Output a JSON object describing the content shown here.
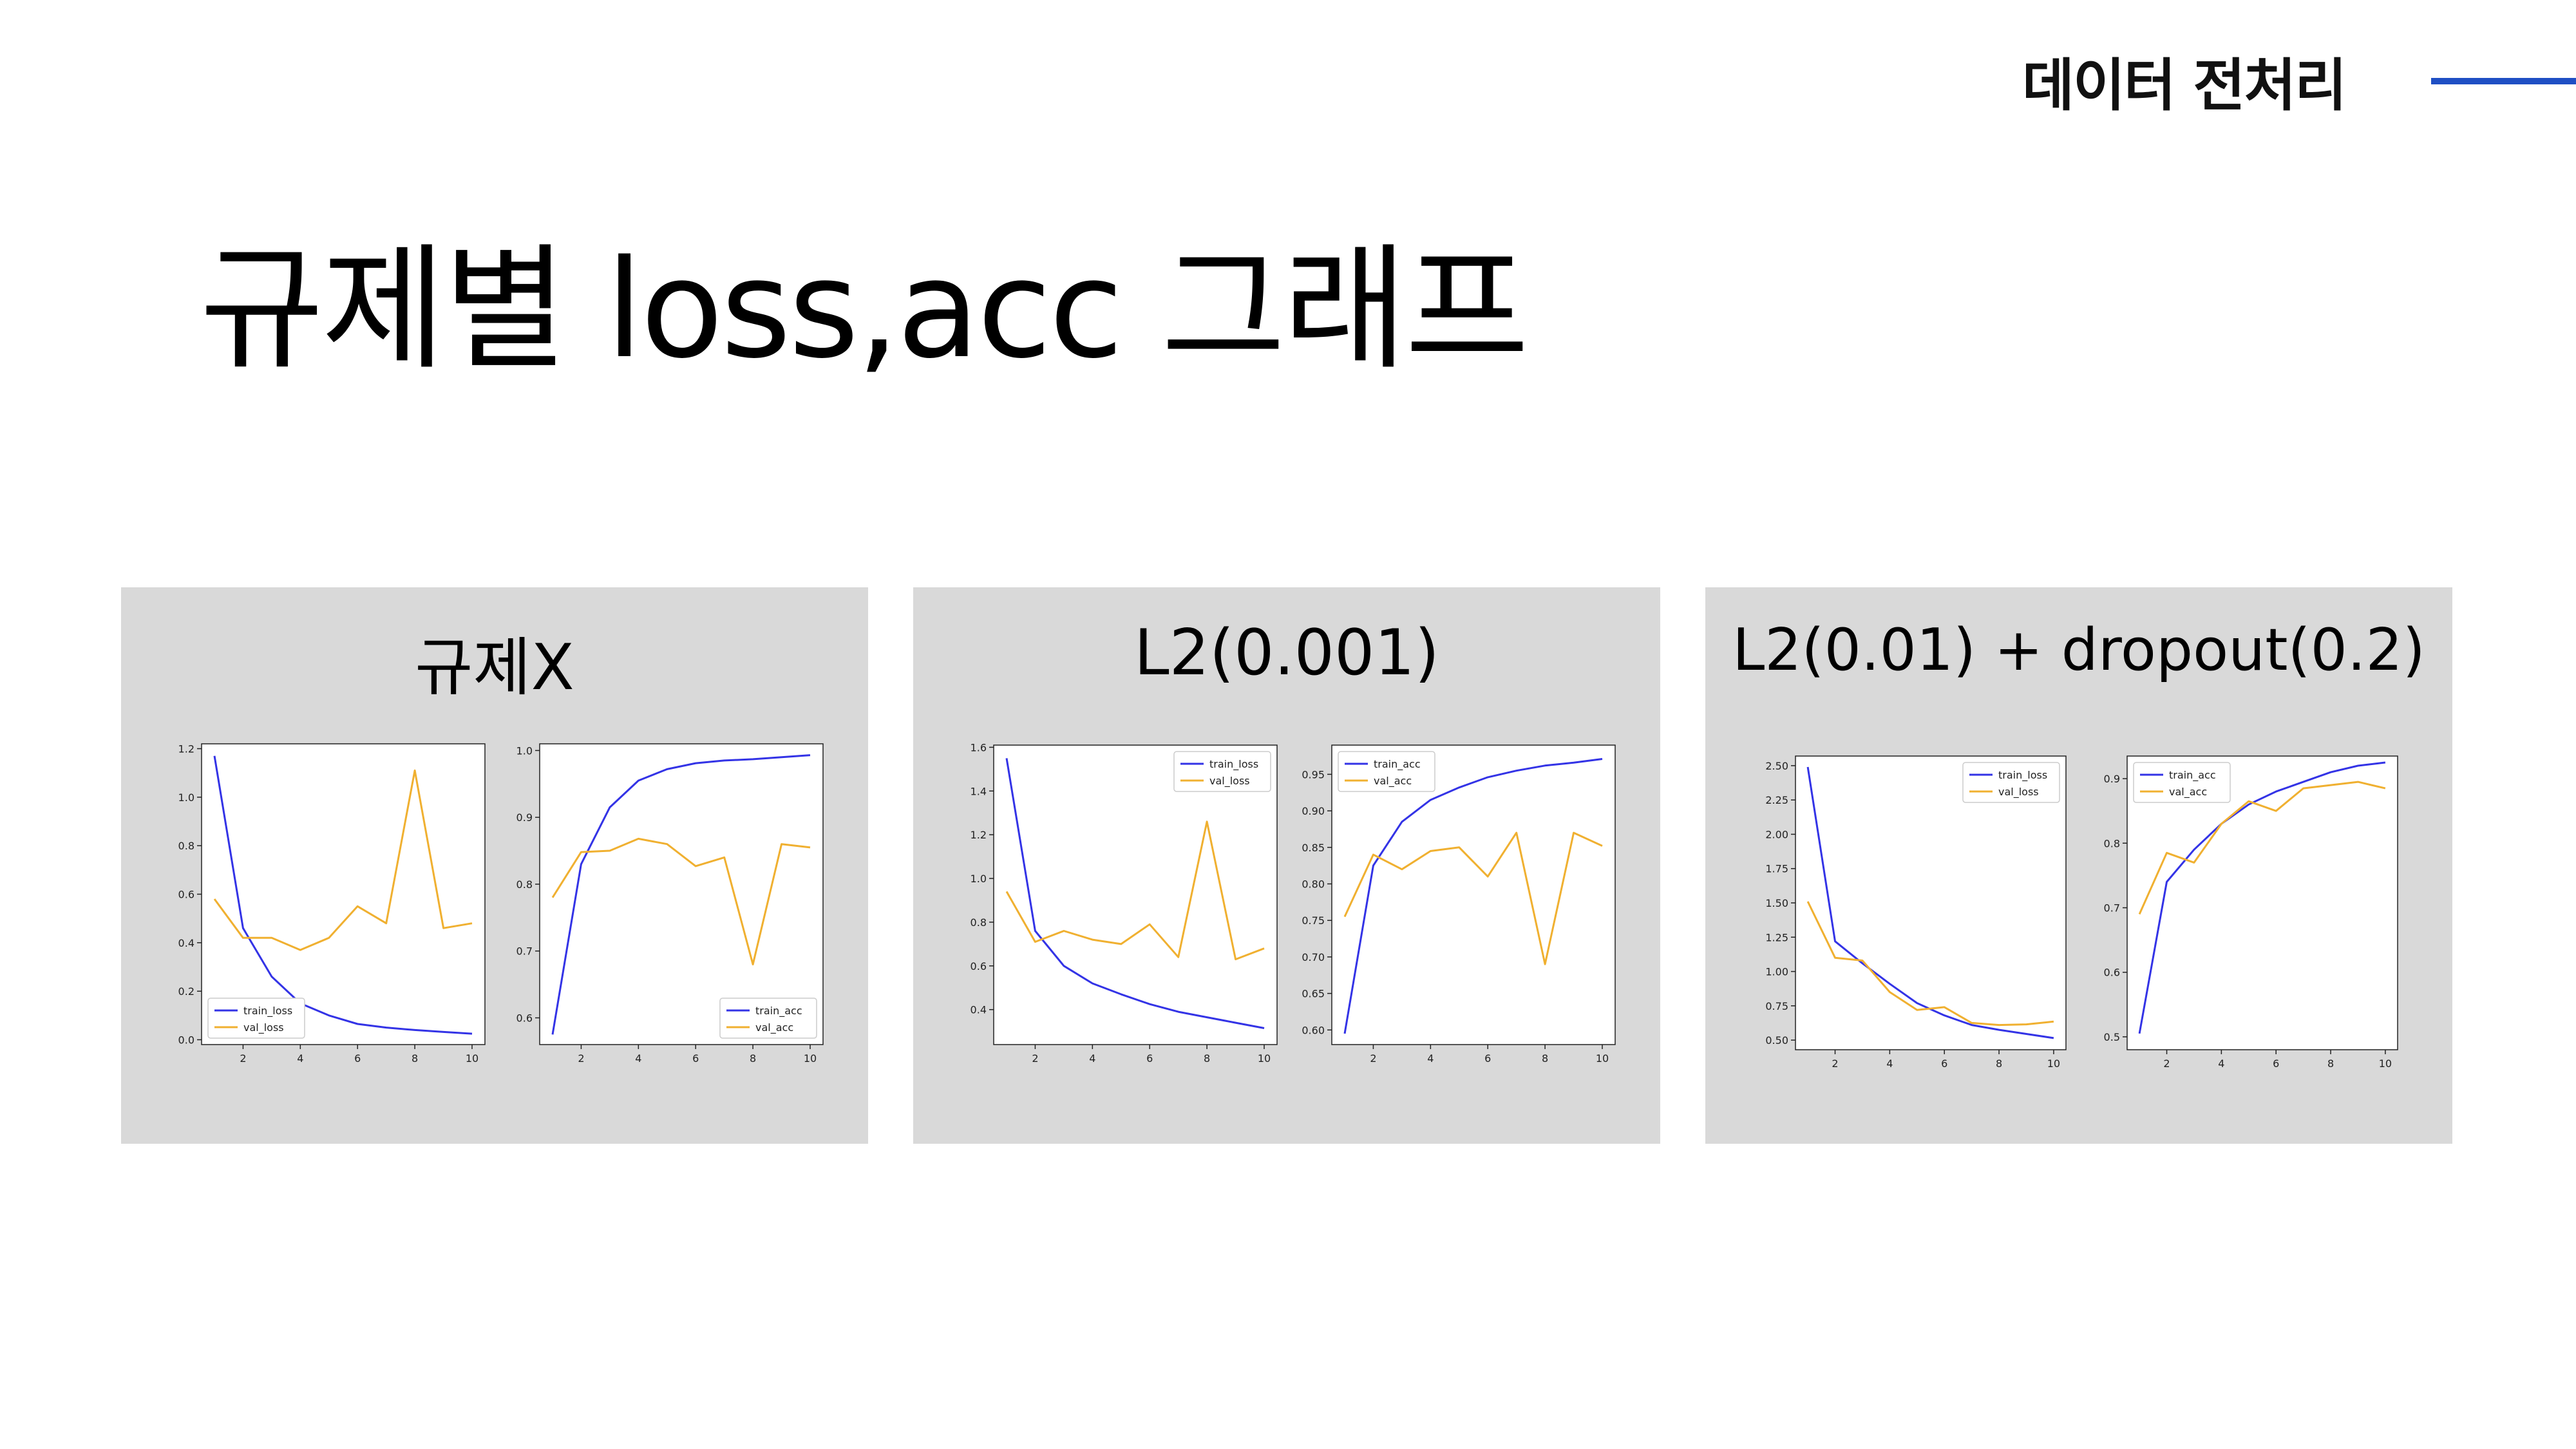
{
  "header": {
    "section_tag": "데이터 전처리",
    "accent_color": "#1f4fc4"
  },
  "title": "규제별 loss,acc 그래프",
  "panels": [
    {
      "title": "규제X"
    },
    {
      "title": "L2(0.001)"
    },
    {
      "title": "L2(0.01) + dropout(0.2)"
    }
  ],
  "chart_data": [
    {
      "type": "line",
      "panel": "규제X",
      "kind": "loss",
      "x": [
        1,
        2,
        3,
        4,
        5,
        6,
        7,
        8,
        9,
        10
      ],
      "ylim": [
        -0.02,
        1.22
      ],
      "yticks": [
        0.0,
        0.2,
        0.4,
        0.6,
        0.8,
        1.0,
        1.2
      ],
      "ytick_labels": [
        "0.0",
        "0.2",
        "0.4",
        "0.6",
        "0.8",
        "1.0",
        "1.2"
      ],
      "xticks": [
        2,
        4,
        6,
        8,
        10
      ],
      "legend": "lower-left",
      "series": [
        {
          "name": "train_loss",
          "color": "#3333e6",
          "values": [
            1.17,
            0.46,
            0.26,
            0.15,
            0.1,
            0.065,
            0.05,
            0.04,
            0.032,
            0.025
          ]
        },
        {
          "name": "val_loss",
          "color": "#f0b030",
          "values": [
            0.58,
            0.42,
            0.42,
            0.37,
            0.42,
            0.55,
            0.48,
            1.11,
            0.46,
            0.48
          ]
        }
      ]
    },
    {
      "type": "line",
      "panel": "규제X",
      "kind": "acc",
      "x": [
        1,
        2,
        3,
        4,
        5,
        6,
        7,
        8,
        9,
        10
      ],
      "ylim": [
        0.56,
        1.01
      ],
      "yticks": [
        0.6,
        0.7,
        0.8,
        0.9,
        1.0
      ],
      "ytick_labels": [
        "0.6",
        "0.7",
        "0.8",
        "0.9",
        "1.0"
      ],
      "xticks": [
        2,
        4,
        6,
        8,
        10
      ],
      "legend": "lower-right",
      "series": [
        {
          "name": "train_acc",
          "color": "#3333e6",
          "values": [
            0.575,
            0.83,
            0.915,
            0.955,
            0.972,
            0.981,
            0.985,
            0.987,
            0.99,
            0.993
          ]
        },
        {
          "name": "val_acc",
          "color": "#f0b030",
          "values": [
            0.78,
            0.848,
            0.85,
            0.868,
            0.86,
            0.827,
            0.84,
            0.68,
            0.86,
            0.855
          ]
        }
      ]
    },
    {
      "type": "line",
      "panel": "L2(0.001)",
      "kind": "loss",
      "x": [
        1,
        2,
        3,
        4,
        5,
        6,
        7,
        8,
        9,
        10
      ],
      "ylim": [
        0.24,
        1.61
      ],
      "yticks": [
        0.4,
        0.6,
        0.8,
        1.0,
        1.2,
        1.4,
        1.6
      ],
      "ytick_labels": [
        "0.4",
        "0.6",
        "0.8",
        "1.0",
        "1.2",
        "1.4",
        "1.6"
      ],
      "xticks": [
        2,
        4,
        6,
        8,
        10
      ],
      "legend": "upper-right",
      "series": [
        {
          "name": "train_loss",
          "color": "#3333e6",
          "values": [
            1.55,
            0.76,
            0.6,
            0.52,
            0.47,
            0.425,
            0.39,
            0.365,
            0.34,
            0.315
          ]
        },
        {
          "name": "val_loss",
          "color": "#f0b030",
          "values": [
            0.94,
            0.71,
            0.76,
            0.72,
            0.7,
            0.79,
            0.64,
            1.26,
            0.63,
            0.68
          ]
        }
      ]
    },
    {
      "type": "line",
      "panel": "L2(0.001)",
      "kind": "acc",
      "x": [
        1,
        2,
        3,
        4,
        5,
        6,
        7,
        8,
        9,
        10
      ],
      "ylim": [
        0.58,
        0.99
      ],
      "yticks": [
        0.6,
        0.65,
        0.7,
        0.75,
        0.8,
        0.85,
        0.9,
        0.95
      ],
      "ytick_labels": [
        "0.60",
        "0.65",
        "0.70",
        "0.75",
        "0.80",
        "0.85",
        "0.90",
        "0.95"
      ],
      "xticks": [
        2,
        4,
        6,
        8,
        10
      ],
      "legend": "upper-left",
      "series": [
        {
          "name": "train_acc",
          "color": "#3333e6",
          "values": [
            0.595,
            0.825,
            0.885,
            0.915,
            0.932,
            0.946,
            0.955,
            0.962,
            0.966,
            0.971
          ]
        },
        {
          "name": "val_acc",
          "color": "#f0b030",
          "values": [
            0.755,
            0.84,
            0.82,
            0.845,
            0.85,
            0.81,
            0.87,
            0.69,
            0.87,
            0.852
          ]
        }
      ]
    },
    {
      "type": "line",
      "panel": "L2(0.01) + dropout(0.2)",
      "kind": "loss",
      "x": [
        1,
        2,
        3,
        4,
        5,
        6,
        7,
        8,
        9,
        10
      ],
      "ylim": [
        0.43,
        2.57
      ],
      "yticks": [
        0.5,
        0.75,
        1.0,
        1.25,
        1.5,
        1.75,
        2.0,
        2.25,
        2.5
      ],
      "ytick_labels": [
        "0.50",
        "0.75",
        "1.00",
        "1.25",
        "1.50",
        "1.75",
        "2.00",
        "2.25",
        "2.50"
      ],
      "xticks": [
        2,
        4,
        6,
        8,
        10
      ],
      "legend": "upper-right",
      "series": [
        {
          "name": "train_loss",
          "color": "#3333e6",
          "values": [
            2.49,
            1.22,
            1.06,
            0.91,
            0.77,
            0.68,
            0.61,
            0.575,
            0.545,
            0.515
          ]
        },
        {
          "name": "val_loss",
          "color": "#f0b030",
          "values": [
            1.51,
            1.1,
            1.08,
            0.85,
            0.72,
            0.74,
            0.625,
            0.61,
            0.615,
            0.635
          ]
        }
      ]
    },
    {
      "type": "line",
      "panel": "L2(0.01) + dropout(0.2)",
      "kind": "acc",
      "x": [
        1,
        2,
        3,
        4,
        5,
        6,
        7,
        8,
        9,
        10
      ],
      "ylim": [
        0.48,
        0.935
      ],
      "yticks": [
        0.5,
        0.6,
        0.7,
        0.8,
        0.9
      ],
      "ytick_labels": [
        "0.5",
        "0.6",
        "0.7",
        "0.8",
        "0.9"
      ],
      "xticks": [
        2,
        4,
        6,
        8,
        10
      ],
      "legend": "upper-left",
      "series": [
        {
          "name": "train_acc",
          "color": "#3333e6",
          "values": [
            0.505,
            0.74,
            0.79,
            0.83,
            0.86,
            0.88,
            0.895,
            0.91,
            0.92,
            0.925
          ]
        },
        {
          "name": "val_acc",
          "color": "#f0b030",
          "values": [
            0.69,
            0.785,
            0.77,
            0.83,
            0.865,
            0.85,
            0.885,
            0.89,
            0.895,
            0.885
          ]
        }
      ]
    }
  ]
}
